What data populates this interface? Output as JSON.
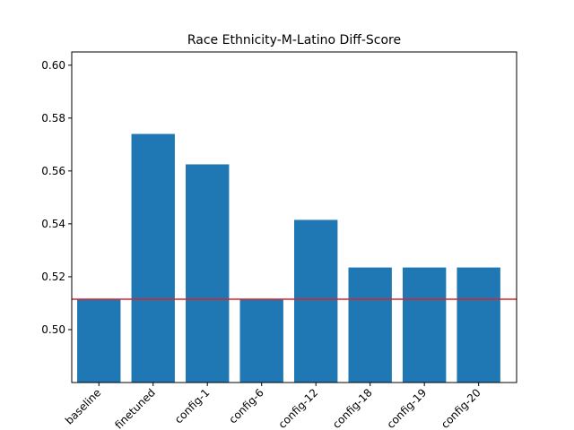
{
  "chart_data": {
    "type": "bar",
    "title": "Race Ethnicity-M-Latino Diff-Score",
    "xlabel": "",
    "ylabel": "",
    "categories": [
      "baseline",
      "finetuned",
      "config-1",
      "config-6",
      "config-12",
      "config-18",
      "config-19",
      "config-20"
    ],
    "values": [
      0.5115,
      0.574,
      0.5625,
      0.5115,
      0.5415,
      0.5235,
      0.5235,
      0.5235
    ],
    "ylim": [
      0.48,
      0.605
    ],
    "yticks": [
      "0.50",
      "0.52",
      "0.54",
      "0.56",
      "0.58",
      "0.60"
    ],
    "reference_line": {
      "y": 0.5115,
      "color": "#d62728"
    },
    "bar_color": "#1f77b4",
    "grid": false,
    "legend": "none"
  }
}
